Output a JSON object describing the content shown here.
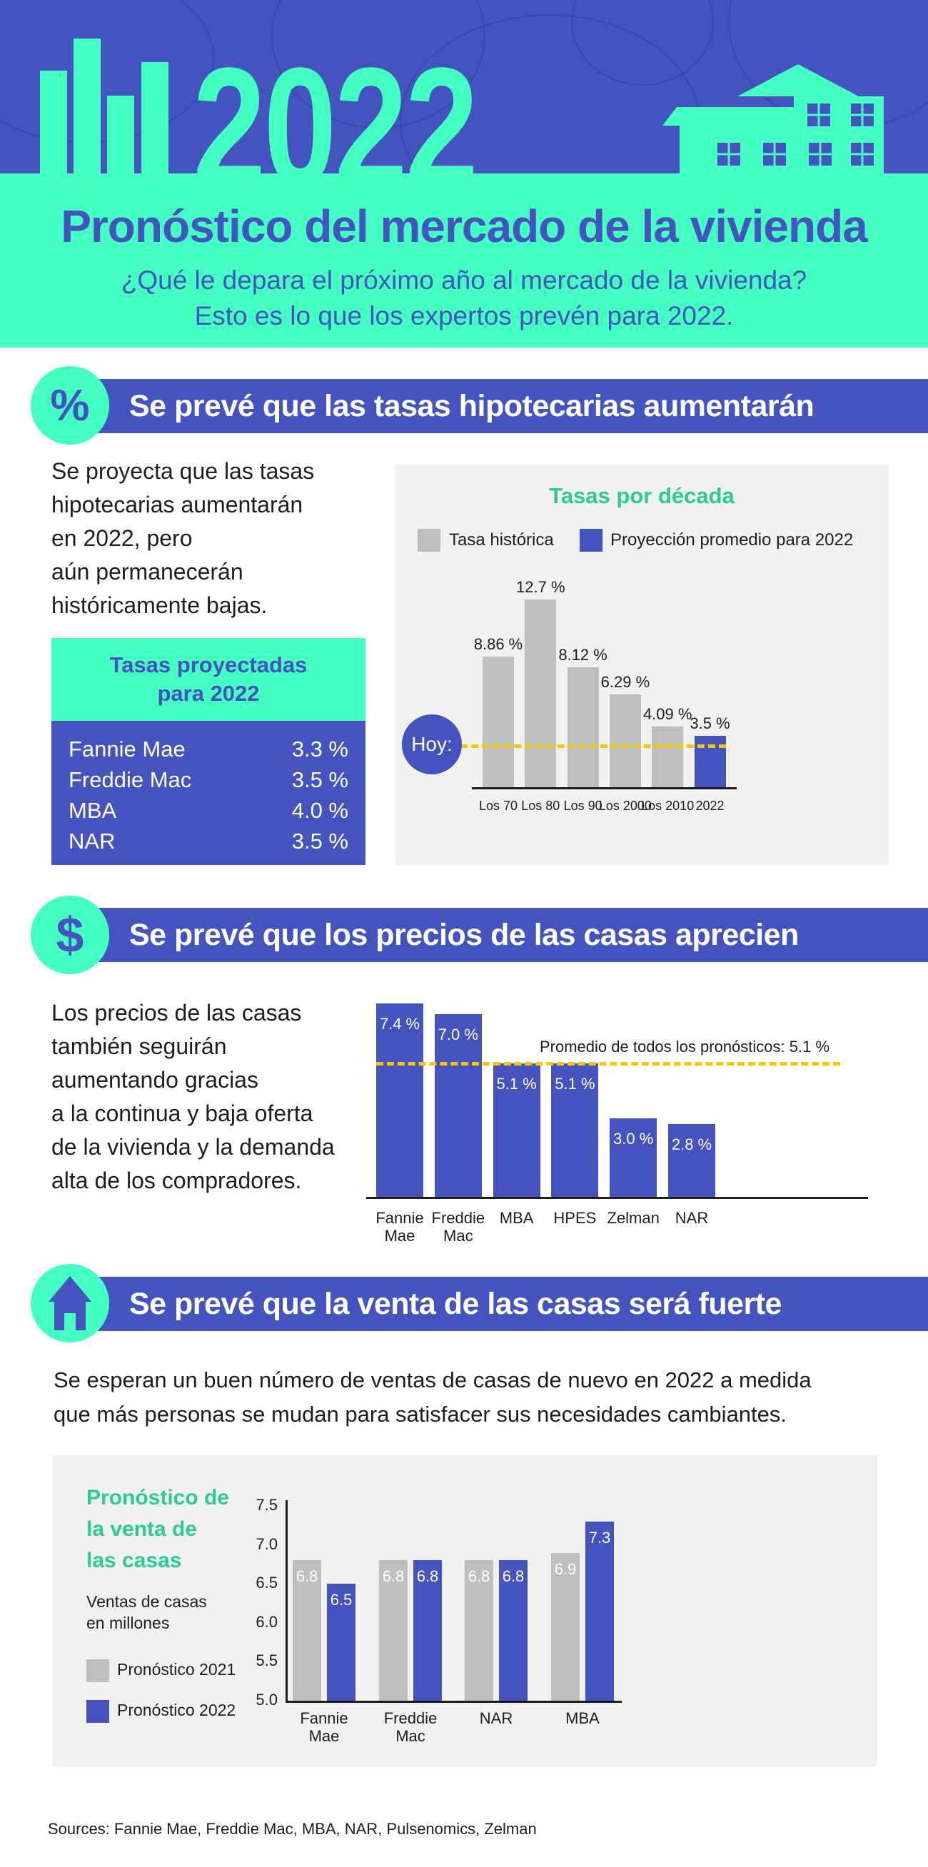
{
  "header": {
    "year": "2022",
    "title": "Pronóstico del mercado de la vivienda",
    "subtitle_line1": "¿Qué le depara el próximo año al mercado de la vivienda?",
    "subtitle_line2": "Esto es lo que los expertos prevén para 2022."
  },
  "colors": {
    "primary_purple": "#4453BE",
    "mint": "#43FFC2",
    "chart_title_green": "#2CCB94",
    "gray_bar": "#BDBEC0",
    "panel_bg": "#F0F1F0",
    "dash_yellow": "#F7C800"
  },
  "section1": {
    "icon": "percent-icon",
    "icon_glyph": "%",
    "heading": "Se prevé que las tasas hipotecarias aumentarán",
    "paragraph_lines": [
      "Se proyecta que las tasas",
      "hipotecarias aumentarán",
      "en 2022, pero",
      "aún permanecerán",
      "históricamente bajas."
    ],
    "table": {
      "title_line1": "Tasas proyectadas",
      "title_line2": "para 2022",
      "rows": [
        {
          "source": "Fannie Mae",
          "rate": "3.3 %"
        },
        {
          "source": "Freddie Mac",
          "rate": "3.5 %"
        },
        {
          "source": "MBA",
          "rate": "4.0 %"
        },
        {
          "source": "NAR",
          "rate": "3.5 %"
        }
      ]
    },
    "today_label": "Hoy:"
  },
  "section2": {
    "icon": "dollar-icon",
    "icon_glyph": "$",
    "heading": "Se prevé que los precios de las casas aprecien",
    "paragraph_lines": [
      "Los precios de las casas",
      "también seguirán",
      "aumentando gracias",
      "a la continua y baja oferta",
      "de la vivienda y la demanda",
      "alta de los compradores."
    ]
  },
  "section3": {
    "icon": "house-icon",
    "heading": "Se prevé que la venta de las casas será fuerte",
    "paragraph_lines": [
      "Se esperan un buen número de ventas de casas de nuevo en 2022 a medida",
      "que más personas se mudan para satisfacer sus necesidades cambiantes."
    ],
    "chart_title_lines": [
      "Pronóstico de",
      "la venta de",
      "las casas"
    ],
    "unit_lines": [
      "Ventas de casas",
      "en millones"
    ]
  },
  "sources": "Sources: Fannie Mae, Freddie Mac, MBA, NAR, Pulsenomics, Zelman",
  "chart_data": [
    {
      "type": "bar",
      "title": "Tasas por década",
      "legend": [
        "Tasa histórica",
        "Proyección promedio para 2022"
      ],
      "legend_position": "top",
      "categories": [
        "Los 70",
        "Los 80",
        "Los 90",
        "Los 2000",
        "Los 2010",
        "2022"
      ],
      "values": [
        8.86,
        12.7,
        8.12,
        6.29,
        4.09,
        3.5
      ],
      "value_labels": [
        "8.86 %",
        "12.7 %",
        "8.12 %",
        "6.29 %",
        "4.09 %",
        "3.5 %"
      ],
      "series_kind": [
        "historic",
        "historic",
        "historic",
        "historic",
        "historic",
        "projection"
      ],
      "reference_line": {
        "label": "Hoy:",
        "value": 3.1
      },
      "xlabel": "",
      "ylabel": "",
      "grid": false
    },
    {
      "type": "bar",
      "title": "",
      "categories": [
        "Fannie Mae",
        "Freddie Mac",
        "MBA",
        "HPES",
        "Zelman",
        "NAR"
      ],
      "category_lines": [
        [
          "Fannie",
          "Mae"
        ],
        [
          "Freddie",
          "Mac"
        ],
        [
          "MBA"
        ],
        [
          "HPES"
        ],
        [
          "Zelman"
        ],
        [
          "NAR"
        ]
      ],
      "values": [
        7.4,
        7.0,
        5.1,
        5.1,
        3.0,
        2.8
      ],
      "value_labels": [
        "7.4 %",
        "7.0 %",
        "5.1 %",
        "5.1 %",
        "3.0 %",
        "2.8 %"
      ],
      "reference_line": {
        "label": "Promedio de todos los pronósticos: 5.1 %",
        "value": 5.1
      },
      "xlabel": "",
      "ylabel": "",
      "grid": false
    },
    {
      "type": "bar",
      "title": "Pronóstico de la venta de las casas",
      "ylabel": "Ventas de casas en millones",
      "xlabel": "",
      "categories": [
        "Fannie Mae",
        "Freddie Mac",
        "NAR",
        "MBA"
      ],
      "category_lines": [
        [
          "Fannie",
          "Mae"
        ],
        [
          "Freddie",
          "Mac"
        ],
        [
          "NAR"
        ],
        [
          "MBA"
        ]
      ],
      "series": [
        {
          "name": "Pronóstico 2021",
          "values": [
            6.8,
            6.8,
            6.8,
            6.9
          ]
        },
        {
          "name": "Pronóstico 2022",
          "values": [
            6.5,
            6.8,
            6.8,
            7.3
          ]
        }
      ],
      "ylim": [
        5.0,
        7.5
      ],
      "yticks": [
        "7.5",
        "7.0",
        "6.5",
        "6.0",
        "5.5",
        "5.0"
      ],
      "legend_position": "left",
      "grid": false
    }
  ]
}
